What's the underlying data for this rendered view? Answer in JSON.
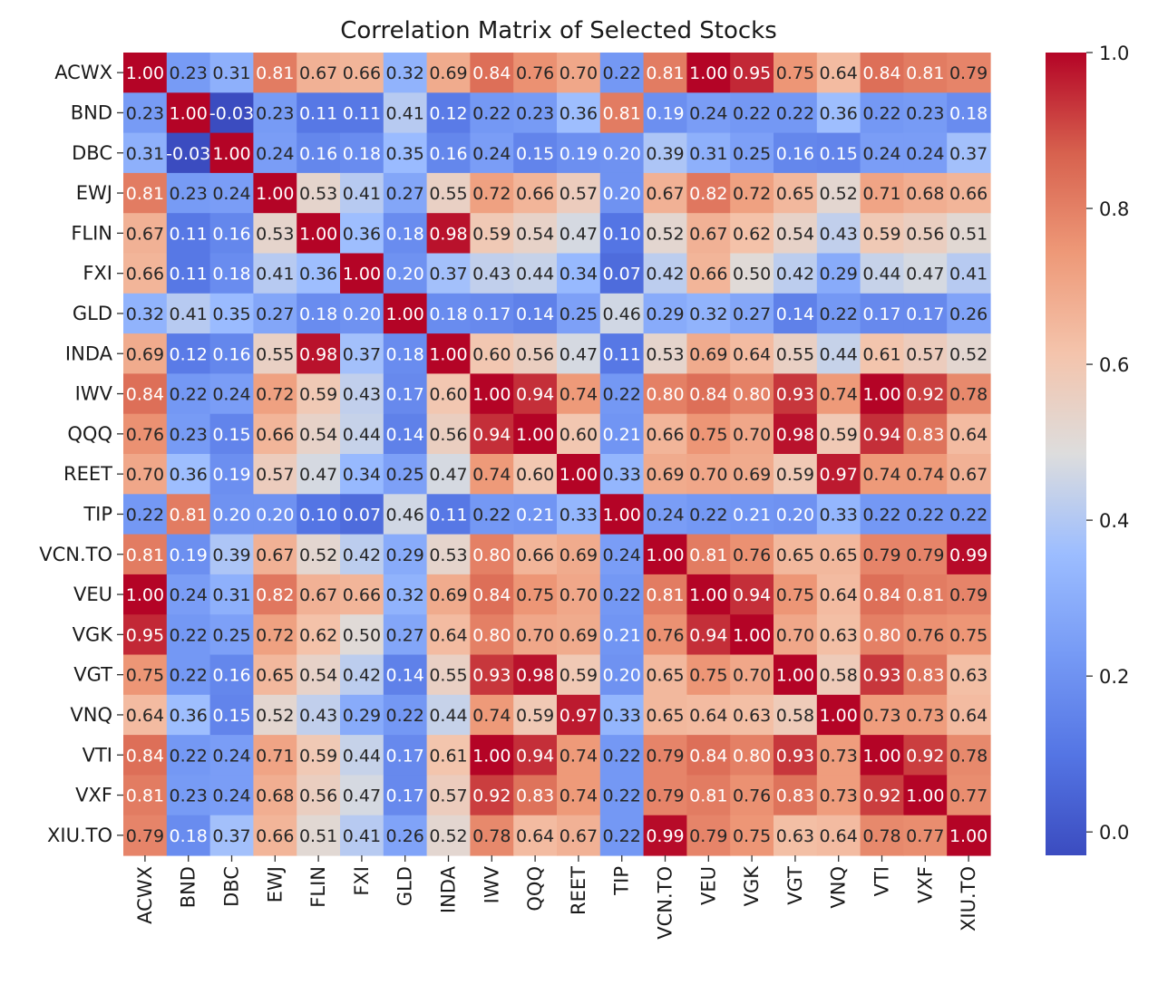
{
  "chart_data": {
    "type": "heatmap",
    "title": "Correlation Matrix of Selected Stocks",
    "xlabel": "",
    "ylabel": "",
    "labels": [
      "ACWX",
      "BND",
      "DBC",
      "EWJ",
      "FLIN",
      "FXI",
      "GLD",
      "INDA",
      "IWV",
      "QQQ",
      "REET",
      "TIP",
      "VCN.TO",
      "VEU",
      "VGK",
      "VGT",
      "VNQ",
      "VTI",
      "VXF",
      "XIU.TO"
    ],
    "matrix": [
      [
        1.0,
        0.23,
        0.31,
        0.81,
        0.67,
        0.66,
        0.32,
        0.69,
        0.84,
        0.76,
        0.7,
        0.22,
        0.81,
        1.0,
        0.95,
        0.75,
        0.64,
        0.84,
        0.81,
        0.79
      ],
      [
        0.23,
        1.0,
        -0.03,
        0.23,
        0.11,
        0.11,
        0.41,
        0.12,
        0.22,
        0.23,
        0.36,
        0.81,
        0.19,
        0.24,
        0.22,
        0.22,
        0.36,
        0.22,
        0.23,
        0.18
      ],
      [
        0.31,
        -0.03,
        1.0,
        0.24,
        0.16,
        0.18,
        0.35,
        0.16,
        0.24,
        0.15,
        0.19,
        0.2,
        0.39,
        0.31,
        0.25,
        0.16,
        0.15,
        0.24,
        0.24,
        0.37
      ],
      [
        0.81,
        0.23,
        0.24,
        1.0,
        0.53,
        0.41,
        0.27,
        0.55,
        0.72,
        0.66,
        0.57,
        0.2,
        0.67,
        0.82,
        0.72,
        0.65,
        0.52,
        0.71,
        0.68,
        0.66
      ],
      [
        0.67,
        0.11,
        0.16,
        0.53,
        1.0,
        0.36,
        0.18,
        0.98,
        0.59,
        0.54,
        0.47,
        0.1,
        0.52,
        0.67,
        0.62,
        0.54,
        0.43,
        0.59,
        0.56,
        0.51
      ],
      [
        0.66,
        0.11,
        0.18,
        0.41,
        0.36,
        1.0,
        0.2,
        0.37,
        0.43,
        0.44,
        0.34,
        0.07,
        0.42,
        0.66,
        0.5,
        0.42,
        0.29,
        0.44,
        0.47,
        0.41
      ],
      [
        0.32,
        0.41,
        0.35,
        0.27,
        0.18,
        0.2,
        1.0,
        0.18,
        0.17,
        0.14,
        0.25,
        0.46,
        0.29,
        0.32,
        0.27,
        0.14,
        0.22,
        0.17,
        0.17,
        0.26
      ],
      [
        0.69,
        0.12,
        0.16,
        0.55,
        0.98,
        0.37,
        0.18,
        1.0,
        0.6,
        0.56,
        0.47,
        0.11,
        0.53,
        0.69,
        0.64,
        0.55,
        0.44,
        0.61,
        0.57,
        0.52
      ],
      [
        0.84,
        0.22,
        0.24,
        0.72,
        0.59,
        0.43,
        0.17,
        0.6,
        1.0,
        0.94,
        0.74,
        0.22,
        0.8,
        0.84,
        0.8,
        0.93,
        0.74,
        1.0,
        0.92,
        0.78
      ],
      [
        0.76,
        0.23,
        0.15,
        0.66,
        0.54,
        0.44,
        0.14,
        0.56,
        0.94,
        1.0,
        0.6,
        0.21,
        0.66,
        0.75,
        0.7,
        0.98,
        0.59,
        0.94,
        0.83,
        0.64
      ],
      [
        0.7,
        0.36,
        0.19,
        0.57,
        0.47,
        0.34,
        0.25,
        0.47,
        0.74,
        0.6,
        1.0,
        0.33,
        0.69,
        0.7,
        0.69,
        0.59,
        0.97,
        0.74,
        0.74,
        0.67
      ],
      [
        0.22,
        0.81,
        0.2,
        0.2,
        0.1,
        0.07,
        0.46,
        0.11,
        0.22,
        0.21,
        0.33,
        1.0,
        0.24,
        0.22,
        0.21,
        0.2,
        0.33,
        0.22,
        0.22,
        0.22
      ],
      [
        0.81,
        0.19,
        0.39,
        0.67,
        0.52,
        0.42,
        0.29,
        0.53,
        0.8,
        0.66,
        0.69,
        0.24,
        1.0,
        0.81,
        0.76,
        0.65,
        0.65,
        0.79,
        0.79,
        0.99
      ],
      [
        1.0,
        0.24,
        0.31,
        0.82,
        0.67,
        0.66,
        0.32,
        0.69,
        0.84,
        0.75,
        0.7,
        0.22,
        0.81,
        1.0,
        0.94,
        0.75,
        0.64,
        0.84,
        0.81,
        0.79
      ],
      [
        0.95,
        0.22,
        0.25,
        0.72,
        0.62,
        0.5,
        0.27,
        0.64,
        0.8,
        0.7,
        0.69,
        0.21,
        0.76,
        0.94,
        1.0,
        0.7,
        0.63,
        0.8,
        0.76,
        0.75
      ],
      [
        0.75,
        0.22,
        0.16,
        0.65,
        0.54,
        0.42,
        0.14,
        0.55,
        0.93,
        0.98,
        0.59,
        0.2,
        0.65,
        0.75,
        0.7,
        1.0,
        0.58,
        0.93,
        0.83,
        0.63
      ],
      [
        0.64,
        0.36,
        0.15,
        0.52,
        0.43,
        0.29,
        0.22,
        0.44,
        0.74,
        0.59,
        0.97,
        0.33,
        0.65,
        0.64,
        0.63,
        0.58,
        1.0,
        0.73,
        0.73,
        0.64
      ],
      [
        0.84,
        0.22,
        0.24,
        0.71,
        0.59,
        0.44,
        0.17,
        0.61,
        1.0,
        0.94,
        0.74,
        0.22,
        0.79,
        0.84,
        0.8,
        0.93,
        0.73,
        1.0,
        0.92,
        0.78
      ],
      [
        0.81,
        0.23,
        0.24,
        0.68,
        0.56,
        0.47,
        0.17,
        0.57,
        0.92,
        0.83,
        0.74,
        0.22,
        0.79,
        0.81,
        0.76,
        0.83,
        0.73,
        0.92,
        1.0,
        0.77
      ],
      [
        0.79,
        0.18,
        0.37,
        0.66,
        0.51,
        0.41,
        0.26,
        0.52,
        0.78,
        0.64,
        0.67,
        0.22,
        0.99,
        0.79,
        0.75,
        0.63,
        0.64,
        0.78,
        0.77,
        1.0
      ]
    ],
    "colormap": "coolwarm",
    "value_range": [
      -0.03,
      1.0
    ],
    "colorbar_ticks": [
      0.0,
      0.2,
      0.4,
      0.6,
      0.8,
      1.0
    ],
    "annotation_format": "0.00",
    "legend": "colorbar-right"
  }
}
